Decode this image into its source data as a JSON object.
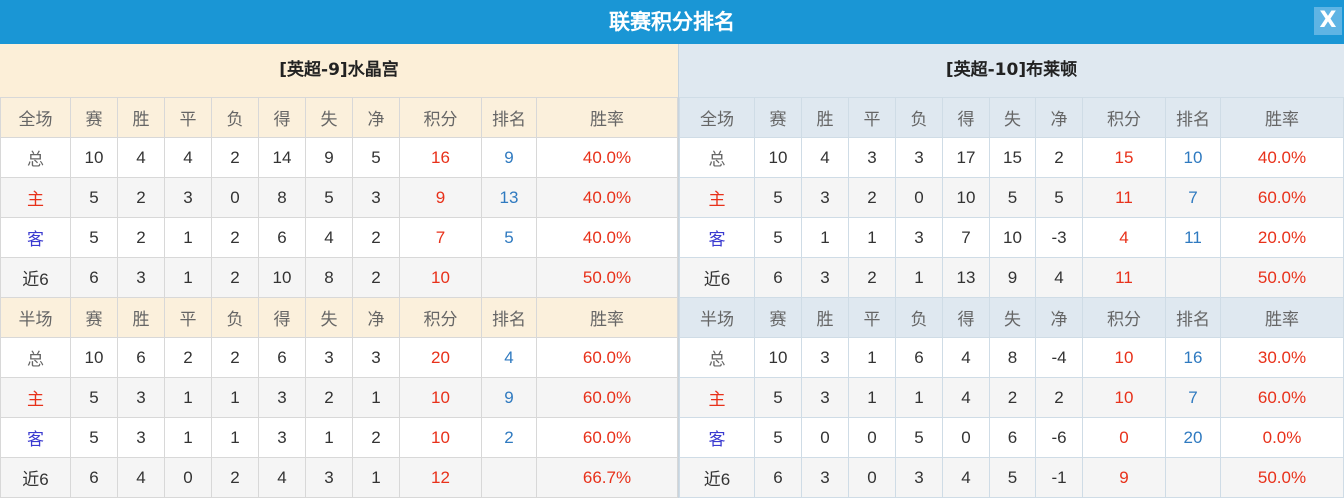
{
  "title": "联赛积分排名",
  "close_label": "X",
  "colors": {
    "title_bar": "#1a96d5",
    "points": "#e8311a",
    "rank": "#2f7ac0"
  },
  "teams": [
    {
      "name": "[英超-9]水晶宫",
      "sections": [
        {
          "headers": [
            "全场",
            "赛",
            "胜",
            "平",
            "负",
            "得",
            "失",
            "净",
            "积分",
            "排名",
            "胜率"
          ],
          "rows": [
            [
              "总",
              "10",
              "4",
              "4",
              "2",
              "14",
              "9",
              "5",
              "16",
              "9",
              "40.0%"
            ],
            [
              "主",
              "5",
              "2",
              "3",
              "0",
              "8",
              "5",
              "3",
              "9",
              "13",
              "40.0%"
            ],
            [
              "客",
              "5",
              "2",
              "1",
              "2",
              "6",
              "4",
              "2",
              "7",
              "5",
              "40.0%"
            ],
            [
              "近6",
              "6",
              "3",
              "1",
              "2",
              "10",
              "8",
              "2",
              "10",
              "",
              "50.0%"
            ]
          ]
        },
        {
          "headers": [
            "半场",
            "赛",
            "胜",
            "平",
            "负",
            "得",
            "失",
            "净",
            "积分",
            "排名",
            "胜率"
          ],
          "rows": [
            [
              "总",
              "10",
              "6",
              "2",
              "2",
              "6",
              "3",
              "3",
              "20",
              "4",
              "60.0%"
            ],
            [
              "主",
              "5",
              "3",
              "1",
              "1",
              "3",
              "2",
              "1",
              "10",
              "9",
              "60.0%"
            ],
            [
              "客",
              "5",
              "3",
              "1",
              "1",
              "3",
              "1",
              "2",
              "10",
              "2",
              "60.0%"
            ],
            [
              "近6",
              "6",
              "4",
              "0",
              "2",
              "4",
              "3",
              "1",
              "12",
              "",
              "66.7%"
            ]
          ]
        }
      ]
    },
    {
      "name": "[英超-10]布莱顿",
      "sections": [
        {
          "headers": [
            "全场",
            "赛",
            "胜",
            "平",
            "负",
            "得",
            "失",
            "净",
            "积分",
            "排名",
            "胜率"
          ],
          "rows": [
            [
              "总",
              "10",
              "4",
              "3",
              "3",
              "17",
              "15",
              "2",
              "15",
              "10",
              "40.0%"
            ],
            [
              "主",
              "5",
              "3",
              "2",
              "0",
              "10",
              "5",
              "5",
              "11",
              "7",
              "60.0%"
            ],
            [
              "客",
              "5",
              "1",
              "1",
              "3",
              "7",
              "10",
              "-3",
              "4",
              "11",
              "20.0%"
            ],
            [
              "近6",
              "6",
              "3",
              "2",
              "1",
              "13",
              "9",
              "4",
              "11",
              "",
              "50.0%"
            ]
          ]
        },
        {
          "headers": [
            "半场",
            "赛",
            "胜",
            "平",
            "负",
            "得",
            "失",
            "净",
            "积分",
            "排名",
            "胜率"
          ],
          "rows": [
            [
              "总",
              "10",
              "3",
              "1",
              "6",
              "4",
              "8",
              "-4",
              "10",
              "16",
              "30.0%"
            ],
            [
              "主",
              "5",
              "3",
              "1",
              "1",
              "4",
              "2",
              "2",
              "10",
              "7",
              "60.0%"
            ],
            [
              "客",
              "5",
              "0",
              "0",
              "5",
              "0",
              "6",
              "-6",
              "0",
              "20",
              "0.0%"
            ],
            [
              "近6",
              "6",
              "3",
              "0",
              "3",
              "4",
              "5",
              "-1",
              "9",
              "",
              "50.0%"
            ]
          ]
        }
      ]
    }
  ]
}
